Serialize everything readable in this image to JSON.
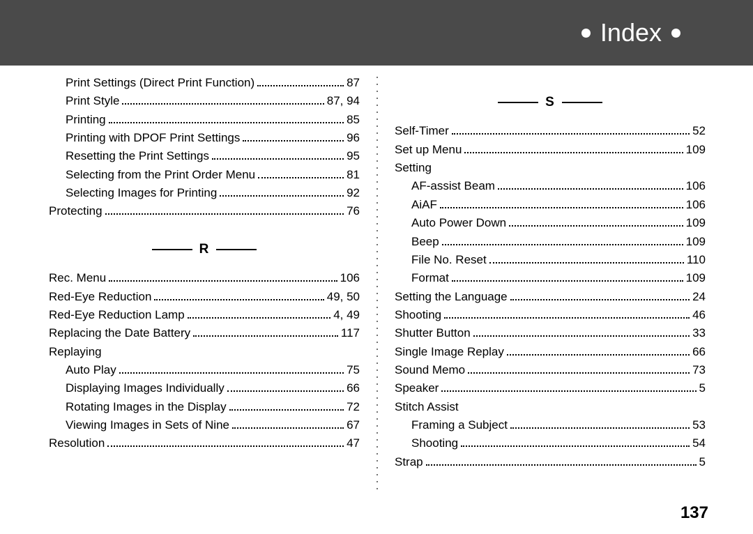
{
  "header": {
    "title": "Index"
  },
  "page_number": "137",
  "styling": {
    "header_bg": "#4a4a4a",
    "header_text_color": "#ffffff",
    "body_bg": "#ffffff",
    "text_color": "#000000",
    "header_fontsize": 36,
    "body_fontsize": 17,
    "section_fontsize": 19,
    "pagenum_fontsize": 24
  },
  "left": {
    "entries1": [
      {
        "label": "Print Settings (Direct Print Function)",
        "page": "87",
        "indent": 1
      },
      {
        "label": "Print Style",
        "page": "87, 94",
        "indent": 1
      },
      {
        "label": "Printing",
        "page": "85",
        "indent": 1
      },
      {
        "label": "Printing with DPOF Print Settings",
        "page": "96",
        "indent": 1
      },
      {
        "label": "Resetting the Print Settings",
        "page": "95",
        "indent": 1
      },
      {
        "label": "Selecting from the Print Order Menu",
        "page": "81",
        "indent": 1
      },
      {
        "label": "Selecting Images for Printing",
        "page": "92",
        "indent": 1
      },
      {
        "label": "Protecting",
        "page": "76",
        "indent": 0
      }
    ],
    "section_r": "R",
    "entries2": [
      {
        "label": "Rec. Menu",
        "page": "106",
        "indent": 0
      },
      {
        "label": "Red-Eye Reduction",
        "page": "49, 50",
        "indent": 0
      },
      {
        "label": "Red-Eye Reduction Lamp",
        "page": "4, 49",
        "indent": 0
      },
      {
        "label": "Replacing the Date Battery",
        "page": "117",
        "indent": 0
      },
      {
        "label": "Replaying",
        "page": "",
        "indent": 0
      },
      {
        "label": "Auto Play",
        "page": "75",
        "indent": 1
      },
      {
        "label": "Displaying Images Individually",
        "page": "66",
        "indent": 1
      },
      {
        "label": "Rotating Images in the Display",
        "page": "72",
        "indent": 1
      },
      {
        "label": "Viewing Images in Sets of Nine",
        "page": "67",
        "indent": 1
      },
      {
        "label": "Resolution",
        "page": "47",
        "indent": 0
      }
    ]
  },
  "right": {
    "section_s": "S",
    "entries1": [
      {
        "label": "Self-Timer",
        "page": "52",
        "indent": 0
      },
      {
        "label": "Set up Menu",
        "page": "109",
        "indent": 0
      },
      {
        "label": "Setting",
        "page": "",
        "indent": 0
      },
      {
        "label": "AF-assist Beam",
        "page": "106",
        "indent": 1
      },
      {
        "label": "AiAF",
        "page": "106",
        "indent": 1
      },
      {
        "label": "Auto Power Down",
        "page": "109",
        "indent": 1
      },
      {
        "label": "Beep",
        "page": "109",
        "indent": 1
      },
      {
        "label": "File No. Reset",
        "page": "110",
        "indent": 1
      },
      {
        "label": "Format",
        "page": "109",
        "indent": 1
      },
      {
        "label": "Setting the Language",
        "page": "24",
        "indent": 0
      },
      {
        "label": "Shooting",
        "page": "46",
        "indent": 0
      },
      {
        "label": "Shutter Button",
        "page": "33",
        "indent": 0
      },
      {
        "label": "Single Image Replay",
        "page": "66",
        "indent": 0
      },
      {
        "label": "Sound Memo",
        "page": "73",
        "indent": 0
      },
      {
        "label": "Speaker",
        "page": "5",
        "indent": 0
      },
      {
        "label": "Stitch Assist",
        "page": "",
        "indent": 0
      },
      {
        "label": "Framing a Subject",
        "page": "53",
        "indent": 1
      },
      {
        "label": "Shooting",
        "page": "54",
        "indent": 1
      },
      {
        "label": "Strap",
        "page": "5",
        "indent": 0
      }
    ]
  }
}
